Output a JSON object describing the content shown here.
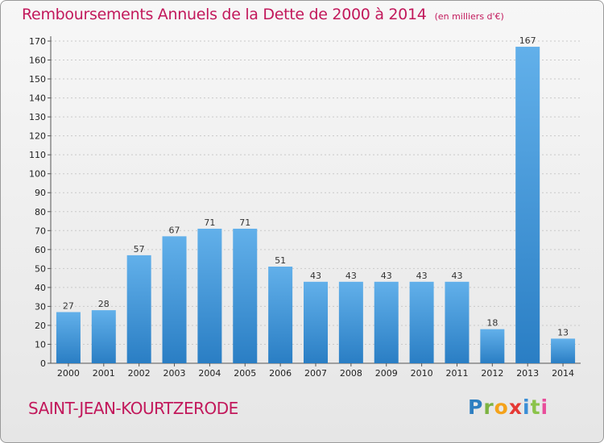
{
  "header": {
    "title": "Remboursements Annuels de la Dette de 2000 à 2014",
    "unit": "(en milliers d'€)"
  },
  "footer": {
    "commune": "SAINT-JEAN-KOURTZERODE",
    "logo_text": "Proxiti"
  },
  "colors": {
    "title": "#c2185b",
    "bar_top": "#62b0ea",
    "bar_bottom": "#2a7ec4"
  },
  "chart_data": {
    "type": "bar",
    "title": "Remboursements Annuels de la Dette de 2000 à 2014",
    "xlabel": "",
    "ylabel": "",
    "categories": [
      "2000",
      "2001",
      "2002",
      "2003",
      "2004",
      "2005",
      "2006",
      "2007",
      "2008",
      "2009",
      "2010",
      "2011",
      "2012",
      "2013",
      "2014"
    ],
    "values": [
      27,
      28,
      57,
      67,
      71,
      71,
      51,
      43,
      43,
      43,
      43,
      43,
      18,
      167,
      13
    ],
    "ylim": [
      0,
      170
    ],
    "yticks": [
      0,
      10,
      20,
      30,
      40,
      50,
      60,
      70,
      80,
      90,
      100,
      110,
      120,
      130,
      140,
      150,
      160,
      170
    ],
    "grid": true
  }
}
